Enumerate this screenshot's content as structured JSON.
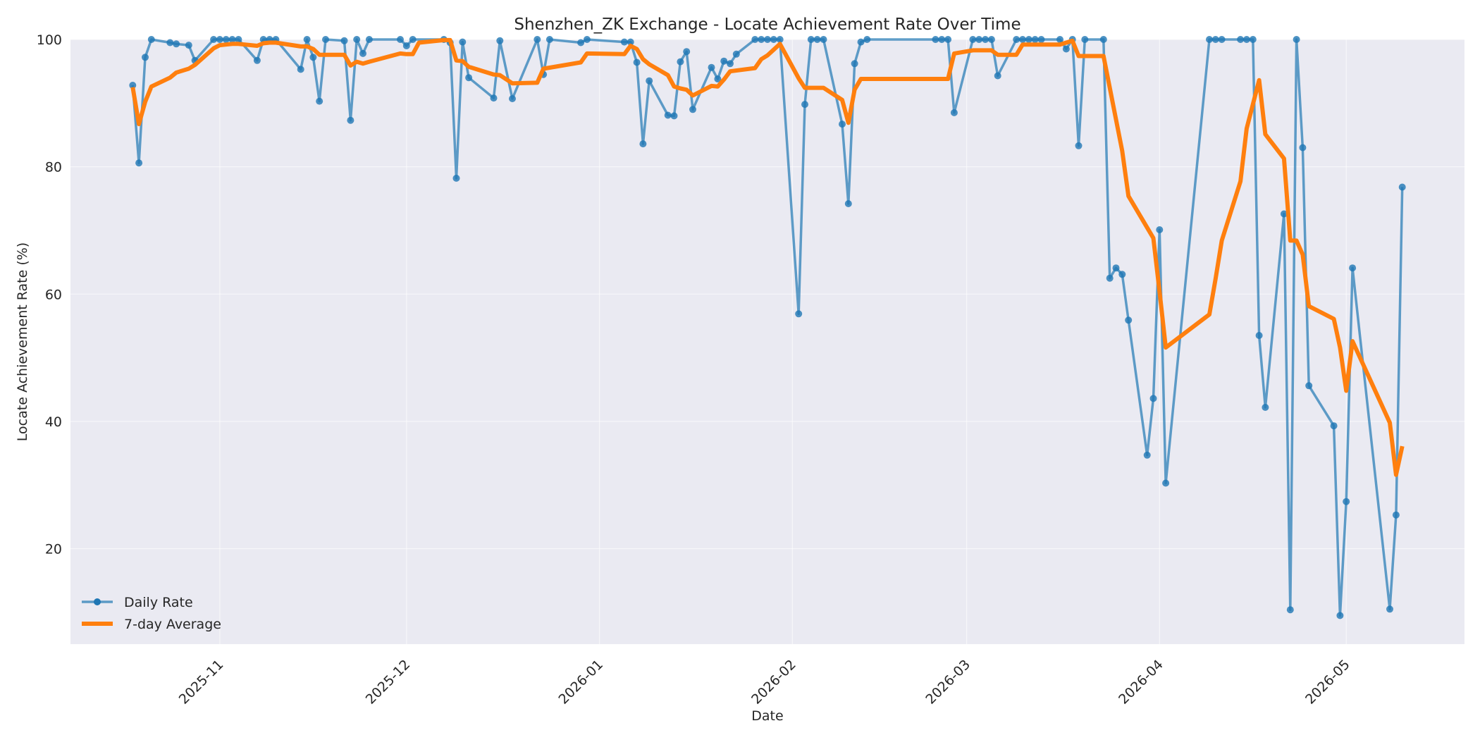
{
  "chart_data": {
    "type": "line",
    "title": "Shenzhen_ZK Exchange - Locate Achievement Rate Over Time",
    "xlabel": "Date",
    "ylabel": "Locate Achievement Rate (%)",
    "xlim": [
      "2025-10-08",
      "2026-05-20"
    ],
    "ylim": [
      5,
      100
    ],
    "x_ticks": [
      "2025-11",
      "2025-12",
      "2026-01",
      "2026-02",
      "2026-03",
      "2026-04",
      "2026-05"
    ],
    "y_ticks": [
      20,
      40,
      60,
      80,
      100
    ],
    "grid": true,
    "legend": {
      "position": "lower-left"
    },
    "colors": {
      "daily": "#1f77b4",
      "avg": "#ff7f0e",
      "background": "#eaeaf2"
    },
    "series": [
      {
        "name": "Daily Rate",
        "marker": "circle",
        "points": [
          [
            "2025-10-18",
            92.8
          ],
          [
            "2025-10-19",
            80.6
          ],
          [
            "2025-10-20",
            97.2
          ],
          [
            "2025-10-21",
            100.0
          ],
          [
            "2025-10-24",
            99.5
          ],
          [
            "2025-10-25",
            99.3
          ],
          [
            "2025-10-27",
            99.1
          ],
          [
            "2025-10-28",
            96.7
          ],
          [
            "2025-10-31",
            100.0
          ],
          [
            "2025-11-01",
            100.0
          ],
          [
            "2025-11-02",
            100.0
          ],
          [
            "2025-11-03",
            100.0
          ],
          [
            "2025-11-04",
            100.0
          ],
          [
            "2025-11-07",
            96.7
          ],
          [
            "2025-11-08",
            100.0
          ],
          [
            "2025-11-09",
            100.0
          ],
          [
            "2025-11-10",
            100.0
          ],
          [
            "2025-11-14",
            95.3
          ],
          [
            "2025-11-15",
            100.0
          ],
          [
            "2025-11-16",
            97.2
          ],
          [
            "2025-11-17",
            90.3
          ],
          [
            "2025-11-18",
            100.0
          ],
          [
            "2025-11-21",
            99.8
          ],
          [
            "2025-11-22",
            87.3
          ],
          [
            "2025-11-23",
            100.0
          ],
          [
            "2025-11-24",
            97.8
          ],
          [
            "2025-11-25",
            100.0
          ],
          [
            "2025-11-30",
            100.0
          ],
          [
            "2025-12-01",
            99.0
          ],
          [
            "2025-12-02",
            100.0
          ],
          [
            "2025-12-07",
            100.0
          ],
          [
            "2025-12-08",
            99.5
          ],
          [
            "2025-12-09",
            78.2
          ],
          [
            "2025-12-10",
            99.6
          ],
          [
            "2025-12-11",
            94.0
          ],
          [
            "2025-12-15",
            90.8
          ],
          [
            "2025-12-16",
            99.8
          ],
          [
            "2025-12-18",
            90.7
          ],
          [
            "2025-12-22",
            100.0
          ],
          [
            "2025-12-23",
            94.5
          ],
          [
            "2025-12-24",
            100.0
          ],
          [
            "2025-12-29",
            99.5
          ],
          [
            "2025-12-30",
            100.0
          ],
          [
            "2026-01-05",
            99.6
          ],
          [
            "2026-01-06",
            99.6
          ],
          [
            "2026-01-07",
            96.4
          ],
          [
            "2026-01-08",
            83.6
          ],
          [
            "2026-01-09",
            93.5
          ],
          [
            "2026-01-12",
            88.1
          ],
          [
            "2026-01-13",
            88.0
          ],
          [
            "2026-01-14",
            96.5
          ],
          [
            "2026-01-15",
            98.1
          ],
          [
            "2026-01-16",
            89.0
          ],
          [
            "2026-01-19",
            95.6
          ],
          [
            "2026-01-20",
            93.8
          ],
          [
            "2026-01-21",
            96.6
          ],
          [
            "2026-01-22",
            96.2
          ],
          [
            "2026-01-23",
            97.7
          ],
          [
            "2026-01-26",
            100.0
          ],
          [
            "2026-01-27",
            100.0
          ],
          [
            "2026-01-28",
            100.0
          ],
          [
            "2026-01-29",
            100.0
          ],
          [
            "2026-01-30",
            100.0
          ],
          [
            "2026-02-02",
            56.9
          ],
          [
            "2026-02-03",
            89.8
          ],
          [
            "2026-02-04",
            100.0
          ],
          [
            "2026-02-05",
            100.0
          ],
          [
            "2026-02-06",
            100.0
          ],
          [
            "2026-02-09",
            86.7
          ],
          [
            "2026-02-10",
            74.2
          ],
          [
            "2026-02-11",
            96.2
          ],
          [
            "2026-02-12",
            99.6
          ],
          [
            "2026-02-13",
            100.0
          ],
          [
            "2026-02-24",
            100.0
          ],
          [
            "2026-02-25",
            100.0
          ],
          [
            "2026-02-26",
            100.0
          ],
          [
            "2026-02-27",
            88.5
          ],
          [
            "2026-03-02",
            100.0
          ],
          [
            "2026-03-03",
            100.0
          ],
          [
            "2026-03-04",
            100.0
          ],
          [
            "2026-03-05",
            100.0
          ],
          [
            "2026-03-06",
            94.3
          ],
          [
            "2026-03-09",
            100.0
          ],
          [
            "2026-03-10",
            100.0
          ],
          [
            "2026-03-11",
            100.0
          ],
          [
            "2026-03-12",
            100.0
          ],
          [
            "2026-03-13",
            100.0
          ],
          [
            "2026-03-16",
            100.0
          ],
          [
            "2026-03-17",
            98.5
          ],
          [
            "2026-03-18",
            100.0
          ],
          [
            "2026-03-19",
            83.3
          ],
          [
            "2026-03-20",
            100.0
          ],
          [
            "2026-03-23",
            100.0
          ],
          [
            "2026-03-24",
            62.5
          ],
          [
            "2026-03-25",
            64.1
          ],
          [
            "2026-03-26",
            63.1
          ],
          [
            "2026-03-27",
            55.9
          ],
          [
            "2026-03-30",
            34.7
          ],
          [
            "2026-03-31",
            43.6
          ],
          [
            "2026-04-01",
            70.1
          ],
          [
            "2026-04-02",
            30.3
          ],
          [
            "2026-04-09",
            100.0
          ],
          [
            "2026-04-10",
            100.0
          ],
          [
            "2026-04-11",
            100.0
          ],
          [
            "2026-04-14",
            100.0
          ],
          [
            "2026-04-15",
            100.0
          ],
          [
            "2026-04-16",
            100.0
          ],
          [
            "2026-04-17",
            53.5
          ],
          [
            "2026-04-18",
            42.2
          ],
          [
            "2026-04-21",
            72.6
          ],
          [
            "2026-04-22",
            10.4
          ],
          [
            "2026-04-23",
            100.0
          ],
          [
            "2026-04-24",
            83.0
          ],
          [
            "2026-04-25",
            45.6
          ],
          [
            "2026-04-29",
            39.3
          ],
          [
            "2026-04-30",
            9.5
          ],
          [
            "2026-05-01",
            27.4
          ],
          [
            "2026-05-02",
            64.1
          ],
          [
            "2026-05-08",
            10.5
          ],
          [
            "2026-05-09",
            25.3
          ],
          [
            "2026-05-10",
            76.8
          ]
        ]
      },
      {
        "name": "7-day Average",
        "marker": "none",
        "points": [
          [
            "2025-10-18",
            92.5
          ],
          [
            "2025-10-19",
            86.7
          ],
          [
            "2025-10-20",
            90.2
          ],
          [
            "2025-10-21",
            92.6
          ],
          [
            "2025-10-24",
            94.0
          ],
          [
            "2025-10-25",
            94.8
          ],
          [
            "2025-10-27",
            95.4
          ],
          [
            "2025-10-28",
            96.0
          ],
          [
            "2025-10-31",
            98.6
          ],
          [
            "2025-11-01",
            99.1
          ],
          [
            "2025-11-02",
            99.2
          ],
          [
            "2025-11-03",
            99.3
          ],
          [
            "2025-11-04",
            99.3
          ],
          [
            "2025-11-07",
            99.0
          ],
          [
            "2025-11-08",
            99.4
          ],
          [
            "2025-11-09",
            99.5
          ],
          [
            "2025-11-10",
            99.5
          ],
          [
            "2025-11-14",
            98.9
          ],
          [
            "2025-11-15",
            98.9
          ],
          [
            "2025-11-16",
            98.5
          ],
          [
            "2025-11-17",
            97.6
          ],
          [
            "2025-11-18",
            97.6
          ],
          [
            "2025-11-21",
            97.6
          ],
          [
            "2025-11-22",
            95.9
          ],
          [
            "2025-11-23",
            96.5
          ],
          [
            "2025-11-24",
            96.2
          ],
          [
            "2025-11-25",
            96.5
          ],
          [
            "2025-11-30",
            97.8
          ],
          [
            "2025-12-01",
            97.7
          ],
          [
            "2025-12-02",
            97.7
          ],
          [
            "2025-12-03",
            99.5
          ],
          [
            "2025-12-07",
            99.9
          ],
          [
            "2025-12-08",
            99.9
          ],
          [
            "2025-12-09",
            96.7
          ],
          [
            "2025-12-10",
            96.6
          ],
          [
            "2025-12-11",
            95.7
          ],
          [
            "2025-12-15",
            94.5
          ],
          [
            "2025-12-16",
            94.4
          ],
          [
            "2025-12-18",
            93.1
          ],
          [
            "2025-12-22",
            93.2
          ],
          [
            "2025-12-23",
            95.4
          ],
          [
            "2025-12-29",
            96.4
          ],
          [
            "2025-12-30",
            97.8
          ],
          [
            "2026-01-05",
            97.7
          ],
          [
            "2026-01-06",
            99.0
          ],
          [
            "2026-01-07",
            98.5
          ],
          [
            "2026-01-08",
            96.9
          ],
          [
            "2026-01-09",
            96.1
          ],
          [
            "2026-01-12",
            94.4
          ],
          [
            "2026-01-13",
            92.6
          ],
          [
            "2026-01-14",
            92.3
          ],
          [
            "2026-01-15",
            92.1
          ],
          [
            "2026-01-16",
            91.2
          ],
          [
            "2026-01-19",
            92.7
          ],
          [
            "2026-01-20",
            92.6
          ],
          [
            "2026-01-21",
            93.7
          ],
          [
            "2026-01-22",
            95.0
          ],
          [
            "2026-01-26",
            95.5
          ],
          [
            "2026-01-27",
            96.9
          ],
          [
            "2026-01-28",
            97.5
          ],
          [
            "2026-01-29",
            98.4
          ],
          [
            "2026-01-30",
            99.3
          ],
          [
            "2026-02-02",
            93.9
          ],
          [
            "2026-02-03",
            92.4
          ],
          [
            "2026-02-04",
            92.4
          ],
          [
            "2026-02-06",
            92.4
          ],
          [
            "2026-02-09",
            90.5
          ],
          [
            "2026-02-10",
            86.9
          ],
          [
            "2026-02-11",
            92.1
          ],
          [
            "2026-02-12",
            93.8
          ],
          [
            "2026-02-13",
            93.8
          ],
          [
            "2026-02-26",
            93.8
          ],
          [
            "2026-02-27",
            97.8
          ],
          [
            "2026-03-02",
            98.3
          ],
          [
            "2026-03-05",
            98.3
          ],
          [
            "2026-03-06",
            97.6
          ],
          [
            "2026-03-09",
            97.6
          ],
          [
            "2026-03-10",
            99.2
          ],
          [
            "2026-03-16",
            99.2
          ],
          [
            "2026-03-17",
            99.5
          ],
          [
            "2026-03-18",
            99.8
          ],
          [
            "2026-03-19",
            97.4
          ],
          [
            "2026-03-23",
            97.4
          ],
          [
            "2026-03-26",
            82.5
          ],
          [
            "2026-03-27",
            75.4
          ],
          [
            "2026-03-31",
            68.8
          ],
          [
            "2026-04-01",
            60.4
          ],
          [
            "2026-04-02",
            51.6
          ],
          [
            "2026-04-09",
            56.8
          ],
          [
            "2026-04-10",
            62.4
          ],
          [
            "2026-04-11",
            68.4
          ],
          [
            "2026-04-14",
            77.7
          ],
          [
            "2026-04-15",
            86.0
          ],
          [
            "2026-04-17",
            93.6
          ],
          [
            "2026-04-18",
            85.1
          ],
          [
            "2026-04-21",
            81.3
          ],
          [
            "2026-04-22",
            68.4
          ],
          [
            "2026-04-23",
            68.4
          ],
          [
            "2026-04-24",
            66.2
          ],
          [
            "2026-04-25",
            58.1
          ],
          [
            "2026-04-29",
            56.1
          ],
          [
            "2026-04-30",
            51.6
          ],
          [
            "2026-05-01",
            44.8
          ],
          [
            "2026-05-02",
            52.6
          ],
          [
            "2026-05-08",
            39.8
          ],
          [
            "2026-05-09",
            31.6
          ],
          [
            "2026-05-10",
            36.1
          ]
        ]
      }
    ]
  }
}
